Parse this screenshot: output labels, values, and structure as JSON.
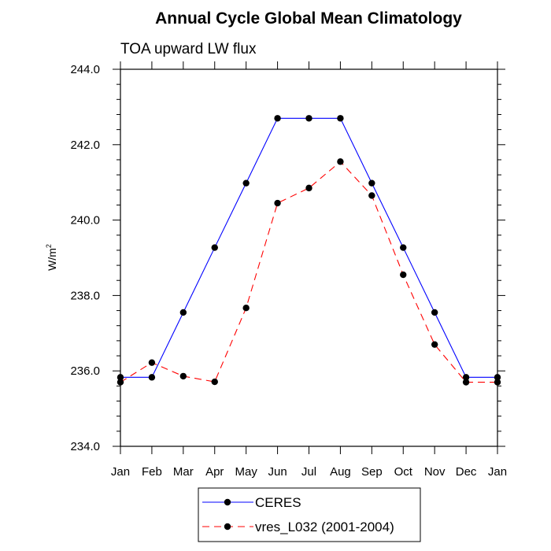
{
  "chart_data": {
    "type": "line",
    "title": "Annual Cycle Global Mean Climatology",
    "subtitle": "TOA upward LW flux",
    "ylabel": "W/m",
    "ylabel_superscript": "2",
    "xlabel": "",
    "categories": [
      "Jan",
      "Feb",
      "Mar",
      "Apr",
      "May",
      "Jun",
      "Jul",
      "Aug",
      "Sep",
      "Oct",
      "Nov",
      "Dec",
      "Jan"
    ],
    "ylim": [
      234.0,
      244.0
    ],
    "yticks": [
      "234.0",
      "236.0",
      "238.0",
      "240.0",
      "242.0",
      "244.0"
    ],
    "grid": false,
    "legend_position": "bottom-center",
    "series": [
      {
        "name": "CERES",
        "color": "#0000ff",
        "dash": "solid",
        "marker": "filled-circle",
        "values": [
          235.83,
          235.83,
          237.55,
          239.27,
          240.98,
          242.7,
          242.7,
          242.7,
          240.98,
          239.27,
          237.55,
          235.83,
          235.83
        ]
      },
      {
        "name": "vres_L032 (2001-2004)",
        "color": "#ff0000",
        "dash": "dashed",
        "marker": "filled-circle",
        "values": [
          235.7,
          236.22,
          235.86,
          235.71,
          237.67,
          240.45,
          240.85,
          241.55,
          240.65,
          238.55,
          236.7,
          235.7,
          235.7
        ]
      }
    ]
  }
}
